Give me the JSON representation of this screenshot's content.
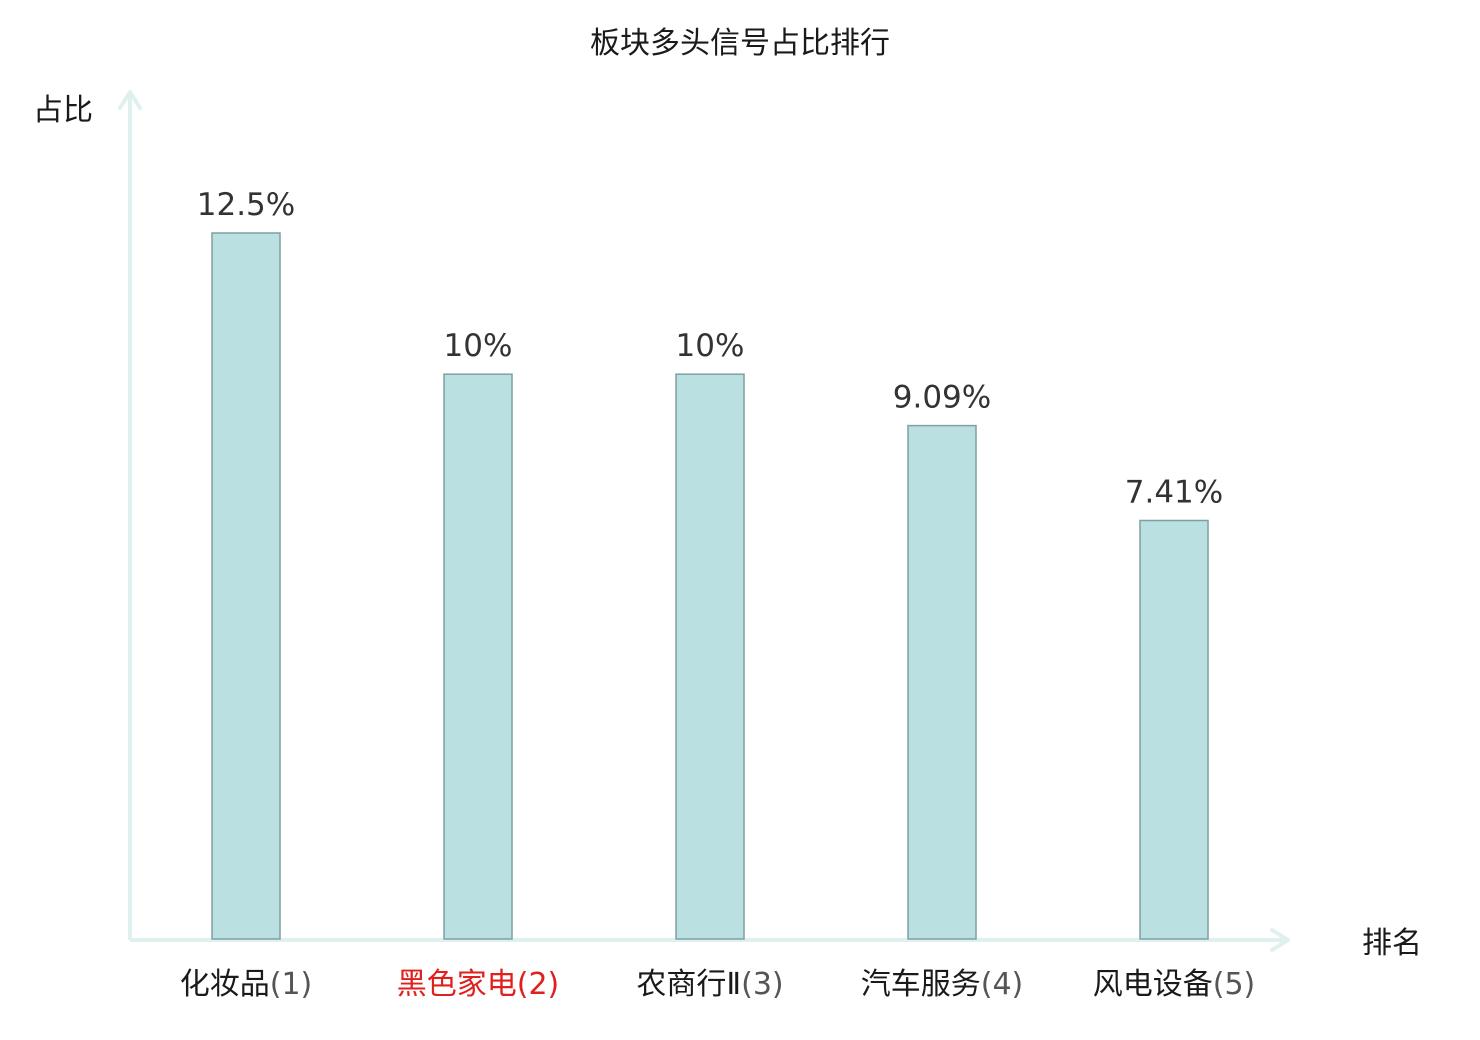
{
  "chart_data": {
    "type": "bar",
    "title": "板块多头信号占比排行",
    "ylabel": "占比",
    "xlabel": "排名",
    "categories": [
      {
        "name": "化妆品",
        "rank": "(1)",
        "highlight": false
      },
      {
        "name": "黑色家电",
        "rank": "(2)",
        "highlight": true
      },
      {
        "name": "农商行Ⅱ",
        "rank": "(3)",
        "highlight": false
      },
      {
        "name": "汽车服务",
        "rank": "(4)",
        "highlight": false
      },
      {
        "name": "风电设备",
        "rank": "(5)",
        "highlight": false
      }
    ],
    "values": [
      12.5,
      10,
      10,
      9.09,
      7.41
    ],
    "value_labels": [
      "12.5%",
      "10%",
      "10%",
      "9.09%",
      "7.41%"
    ],
    "ylim": [
      0,
      12.5
    ],
    "grid": false,
    "legend": "none"
  },
  "colors": {
    "bar_fill": "#bbe0e2",
    "bar_stroke": "#7fa0a2",
    "axis": "#dff1ef",
    "text": "#1a1a1a",
    "value_text": "#333333",
    "highlight_text": "#e0201c",
    "rank_text": "#555555"
  }
}
